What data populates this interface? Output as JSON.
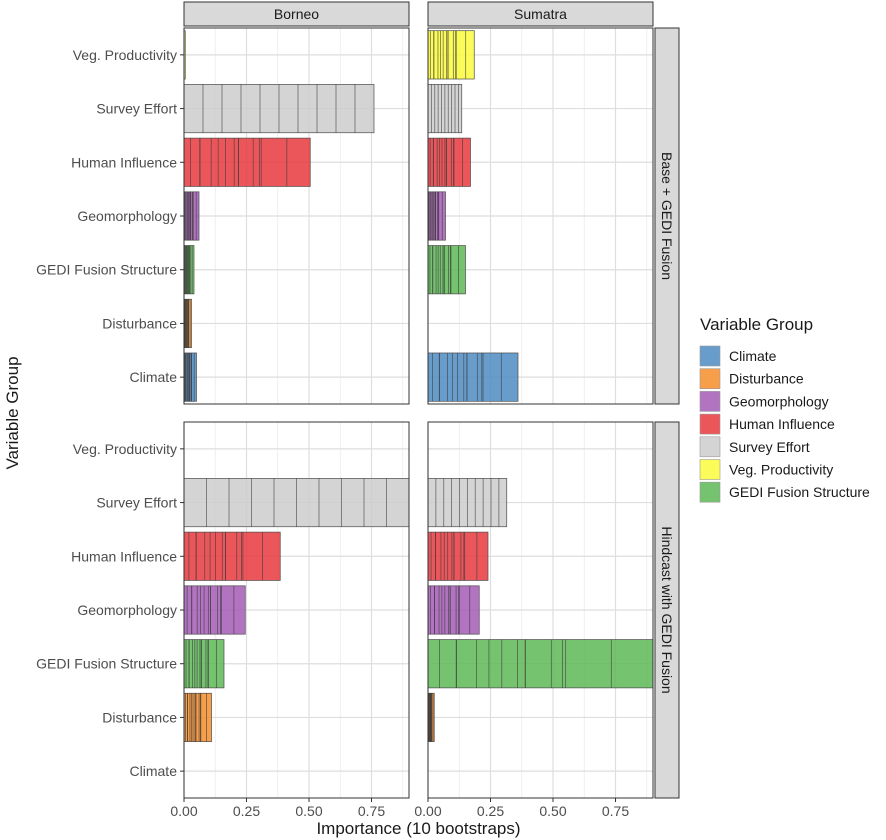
{
  "chart_data": {
    "type": "bar",
    "orientation": "horizontal",
    "facet_columns": [
      "Borneo",
      "Sumatra"
    ],
    "facet_rows": [
      "Base + GEDI Fusion",
      "Hindcast with GEDI Fusion"
    ],
    "categories": [
      "Veg. Productivity",
      "Survey Effort",
      "Human Influence",
      "Geomorphology",
      "GEDI Fusion Structure",
      "Disturbance",
      "Climate"
    ],
    "xlabel": "Importance (10 bootstraps)",
    "ylabel": "Variable Group",
    "xlim": [
      0,
      0.9
    ],
    "xticks": [
      "0.00",
      "0.25",
      "0.50",
      "0.75"
    ],
    "grid": true,
    "legend": {
      "title": "Variable Group",
      "position": "right",
      "entries": [
        {
          "label": "Climate",
          "color": "#4E8CC2"
        },
        {
          "label": "Disturbance",
          "color": "#F58D2A"
        },
        {
          "label": "Geomorphology",
          "color": "#A45BB5"
        },
        {
          "label": "Human Influence",
          "color": "#E8383D"
        },
        {
          "label": "Survey Effort",
          "color": "#CDCDCD"
        },
        {
          "label": "Veg. Productivity",
          "color": "#FAFA3C"
        },
        {
          "label": "GEDI Fusion Structure",
          "color": "#5DB855"
        }
      ]
    },
    "panels": [
      {
        "row": "Base + GEDI Fusion",
        "col": "Borneo",
        "values": {
          "Veg. Productivity": 0.005,
          "Survey Effort": 0.76,
          "Human Influence": 0.505,
          "Geomorphology": 0.06,
          "GEDI Fusion Structure": 0.04,
          "Disturbance": 0.03,
          "Climate": 0.05
        }
      },
      {
        "row": "Base + GEDI Fusion",
        "col": "Sumatra",
        "values": {
          "Veg. Productivity": 0.185,
          "Survey Effort": 0.135,
          "Human Influence": 0.17,
          "Geomorphology": 0.07,
          "GEDI Fusion Structure": 0.15,
          "Disturbance": 0.0,
          "Climate": 0.36
        }
      },
      {
        "row": "Hindcast with GEDI Fusion",
        "col": "Borneo",
        "values": {
          "Veg. Productivity": 0.0,
          "Survey Effort": 0.9,
          "Human Influence": 0.385,
          "Geomorphology": 0.245,
          "GEDI Fusion Structure": 0.16,
          "Disturbance": 0.11,
          "Climate": 0.0
        }
      },
      {
        "row": "Hindcast with GEDI Fusion",
        "col": "Sumatra",
        "values": {
          "Veg. Productivity": 0.0,
          "Survey Effort": 0.315,
          "Human Influence": 0.24,
          "Geomorphology": 0.205,
          "GEDI Fusion Structure": 0.9,
          "Disturbance": 0.025,
          "Climate": 0.0
        }
      }
    ]
  }
}
